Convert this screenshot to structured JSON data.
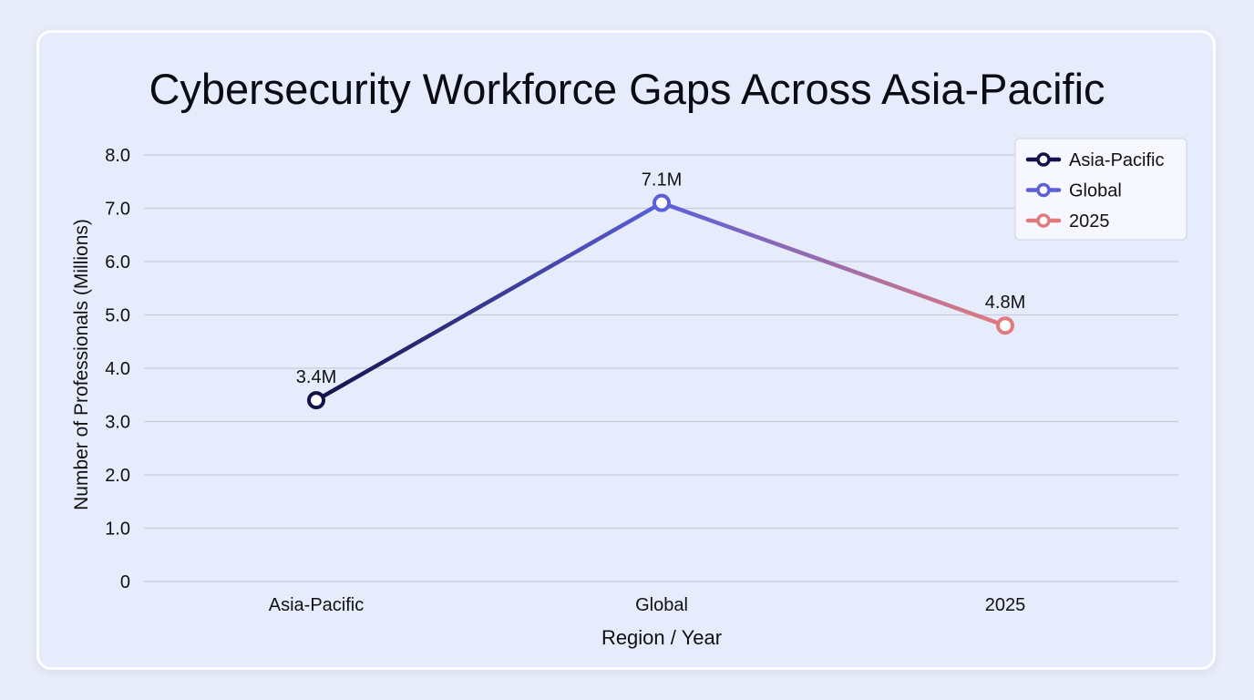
{
  "chart_data": {
    "type": "line",
    "title": "Cybersecurity Workforce Gaps Across Asia-Pacific",
    "xlabel": "Region / Year",
    "ylabel": "Number of Professionals (Millions)",
    "categories": [
      "Asia-Pacific",
      "Global",
      "2025"
    ],
    "values": [
      3.4,
      7.1,
      4.8
    ],
    "data_labels": [
      "3.4M",
      "7.1M",
      "4.8M"
    ],
    "ylim": [
      0,
      8
    ],
    "yticks": [
      0,
      1,
      2,
      3,
      4,
      5,
      6,
      7,
      8
    ],
    "ytick_labels": [
      "0",
      "1.0",
      "2.0",
      "3.0",
      "4.0",
      "5.0",
      "6.0",
      "7.0",
      "8.0"
    ],
    "grid": true,
    "legend_position": "top-right",
    "legend": [
      {
        "name": "Asia-Pacific",
        "color": "#14124a"
      },
      {
        "name": "Global",
        "color": "#5b5fd8"
      },
      {
        "name": "2025",
        "color": "#e07a7d"
      }
    ],
    "point_colors": [
      "#14124a",
      "#5b5fd8",
      "#e07a7d"
    ]
  }
}
